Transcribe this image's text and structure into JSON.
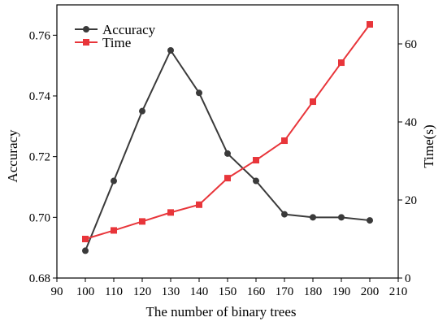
{
  "chart_data": {
    "type": "line",
    "xlabel": "The number of binary trees",
    "ylabel_left": "Accuracy",
    "ylabel_right": "Time(s)",
    "xlim": [
      90,
      210
    ],
    "x_ticks": [
      90,
      100,
      110,
      120,
      130,
      140,
      150,
      160,
      170,
      180,
      190,
      200,
      210
    ],
    "ylim_left": [
      0.68,
      0.77
    ],
    "y_left_ticks": [
      0.68,
      0.7,
      0.72,
      0.74,
      0.76
    ],
    "ylim_right": [
      0,
      70
    ],
    "y_right_ticks": [
      0,
      20,
      40,
      60
    ],
    "x": [
      100,
      110,
      120,
      130,
      140,
      150,
      160,
      170,
      180,
      190,
      200
    ],
    "series": [
      {
        "name": "Accuracy",
        "axis": "left",
        "color": "#3a3a3a",
        "marker": "circle",
        "values": [
          0.689,
          0.712,
          0.735,
          0.755,
          0.741,
          0.721,
          0.712,
          0.701,
          0.7,
          0.7,
          0.699
        ]
      },
      {
        "name": "Time",
        "axis": "right",
        "color": "#e8353a",
        "marker": "square",
        "values": [
          10.0,
          12.2,
          14.5,
          16.8,
          18.8,
          25.6,
          30.2,
          35.2,
          45.2,
          55.2,
          65.0
        ]
      }
    ],
    "legend_position": "top-left",
    "grid": false
  }
}
